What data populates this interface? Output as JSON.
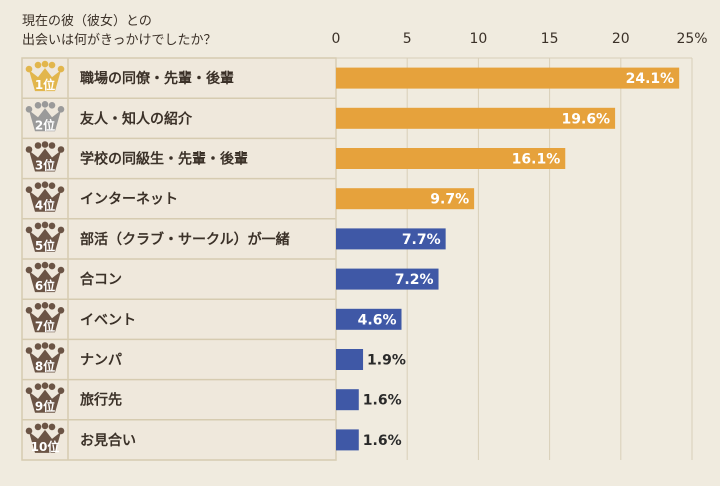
{
  "chart_data": {
    "type": "bar",
    "orientation": "horizontal",
    "title_lines": [
      "現在の彼（彼女）との",
      "出会いは何がきっかけでしたか？"
    ],
    "xlim": [
      0,
      25
    ],
    "ticks": [
      "0",
      "5",
      "10",
      "15",
      "20",
      "25%"
    ],
    "grid": true,
    "categories": [
      "職場の同僚・先輩・後輩",
      "友人・知人の紹介",
      "学校の同級生・先輩・後輩",
      "インターネット",
      "部活（クラブ・サークル）が一緒",
      "合コン",
      "イベント",
      "ナンパ",
      "旅行先",
      "お見合い"
    ],
    "ranks": [
      "1位",
      "2位",
      "3位",
      "4位",
      "5位",
      "6位",
      "7位",
      "8位",
      "9位",
      "10位"
    ],
    "values": [
      24.1,
      19.6,
      16.1,
      9.7,
      7.7,
      7.2,
      4.6,
      1.9,
      1.6,
      1.6
    ],
    "value_labels": [
      "24.1%",
      "19.6%",
      "16.1%",
      "9.7%",
      "7.7%",
      "7.2%",
      "4.6%",
      "1.9%",
      "1.6%",
      "1.6%"
    ],
    "bar_colors": [
      "#e6a23c",
      "#e6a23c",
      "#e6a23c",
      "#e6a23c",
      "#3f58a6",
      "#3f58a6",
      "#3f58a6",
      "#3f58a6",
      "#3f58a6",
      "#3f58a6"
    ],
    "crown_colors": [
      "#e2b64c",
      "#9a9a9a",
      "#6b5445",
      "#6b5445",
      "#6b5445",
      "#6b5445",
      "#6b5445",
      "#6b5445",
      "#6b5445",
      "#6b5445"
    ],
    "rank_icon": "crown-icon"
  }
}
